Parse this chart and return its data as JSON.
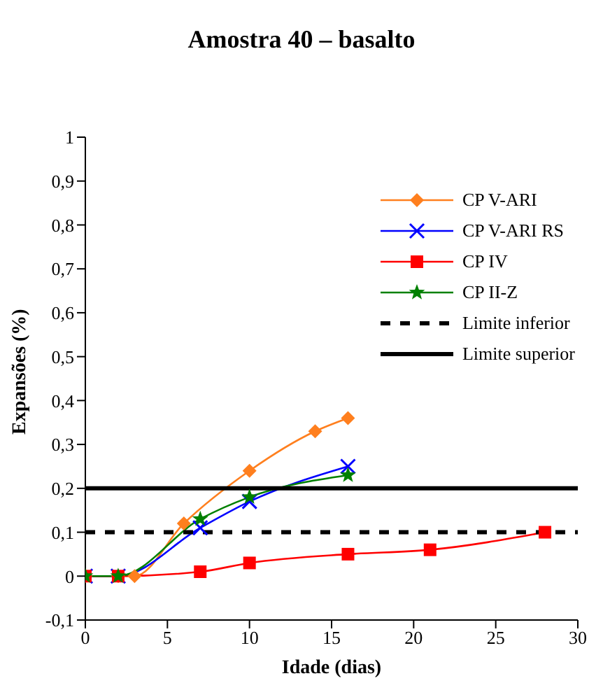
{
  "chart_data": {
    "type": "line",
    "title": "Amostra 40 – basalto",
    "xlabel": "Idade (dias)",
    "ylabel": "Expansões (%)",
    "series": [
      {
        "name": "CP V-ARI",
        "color": "#ff7f1e",
        "marker": "diamond",
        "x": [
          0,
          2,
          3,
          6,
          10,
          14,
          16
        ],
        "values": [
          0,
          0,
          0,
          0.12,
          0.24,
          0.33,
          0.36
        ]
      },
      {
        "name": "CP V-ARI RS",
        "color": "#0000ff",
        "marker": "cross",
        "x": [
          0,
          2,
          7,
          10,
          16
        ],
        "values": [
          0,
          0,
          0.11,
          0.17,
          0.25
        ]
      },
      {
        "name": "CP IV",
        "color": "#ff0000",
        "marker": "square",
        "x": [
          0,
          2,
          7,
          10,
          16,
          21,
          28
        ],
        "values": [
          0,
          0,
          0.01,
          0.03,
          0.05,
          0.06,
          0.1
        ]
      },
      {
        "name": "CP II-Z",
        "color": "#008000",
        "marker": "star",
        "x": [
          0,
          2,
          7,
          10,
          16
        ],
        "values": [
          0,
          0,
          0.13,
          0.18,
          0.23
        ]
      },
      {
        "name": "Limite inferior",
        "color": "#000000",
        "marker": "none",
        "line_style": "dashed",
        "x": [
          0,
          30
        ],
        "values": [
          0.1,
          0.1
        ]
      },
      {
        "name": "Limite superior",
        "color": "#000000",
        "marker": "none",
        "line_style": "solid",
        "x": [
          0,
          30
        ],
        "values": [
          0.2,
          0.2
        ]
      }
    ],
    "xlim": [
      0,
      30
    ],
    "xticks": [
      0,
      5,
      10,
      15,
      20,
      25,
      30
    ],
    "ylim": [
      -0.1,
      1
    ],
    "yticks": [
      {
        "value": -0.1,
        "label": "-0,1"
      },
      0,
      {
        "value": 0.1,
        "label": "0,1"
      },
      {
        "value": 0.2,
        "label": "0,2"
      },
      {
        "value": 0.3,
        "label": "0,3"
      },
      {
        "value": 0.4,
        "label": "0,4"
      },
      {
        "value": 0.5,
        "label": "0,5"
      },
      {
        "value": 0.6,
        "label": "0,6"
      },
      {
        "value": 0.7,
        "label": "0,7"
      },
      {
        "value": 0.8,
        "label": "0,8"
      },
      {
        "value": 0.9,
        "label": "0,9"
      },
      1
    ],
    "grid": false,
    "legend": "top right"
  }
}
